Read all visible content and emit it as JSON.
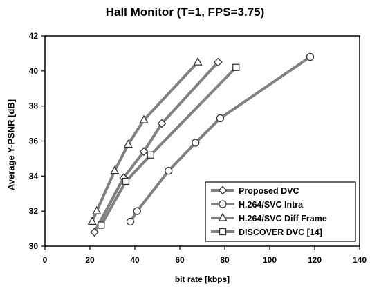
{
  "chart_data": {
    "type": "line",
    "title": "Hall Monitor (T=1, FPS=3.75)",
    "xlabel": "bit rate [kbps]",
    "ylabel": "Average Y-PSNR [dB]",
    "xlim": [
      0,
      140
    ],
    "ylim": [
      30,
      42
    ],
    "xticks": [
      0,
      20,
      40,
      60,
      80,
      100,
      120,
      140
    ],
    "yticks": [
      30,
      32,
      34,
      36,
      38,
      40,
      42
    ],
    "grid": false,
    "legend_position": "bottom-right",
    "line_color": "#808080",
    "series": [
      {
        "name": "Proposed DVC",
        "marker": "diamond",
        "points": [
          [
            22,
            30.8
          ],
          [
            35,
            33.9
          ],
          [
            44,
            35.4
          ],
          [
            52,
            37.0
          ],
          [
            77,
            40.5
          ]
        ]
      },
      {
        "name": "H.264/SVC Intra",
        "marker": "circle",
        "points": [
          [
            38,
            31.4
          ],
          [
            41,
            32.0
          ],
          [
            55,
            34.3
          ],
          [
            67,
            35.9
          ],
          [
            78,
            37.3
          ],
          [
            118,
            40.8
          ]
        ]
      },
      {
        "name": "H.264/SVC Diff Frame",
        "marker": "triangle",
        "points": [
          [
            21,
            31.4
          ],
          [
            23,
            32.0
          ],
          [
            31,
            34.3
          ],
          [
            37,
            35.8
          ],
          [
            44,
            37.2
          ],
          [
            68,
            40.5
          ]
        ]
      },
      {
        "name": "DISCOVER DVC [14]",
        "marker": "square",
        "points": [
          [
            25,
            31.2
          ],
          [
            36,
            33.7
          ],
          [
            47,
            35.2
          ],
          [
            85,
            40.2
          ]
        ]
      }
    ]
  }
}
